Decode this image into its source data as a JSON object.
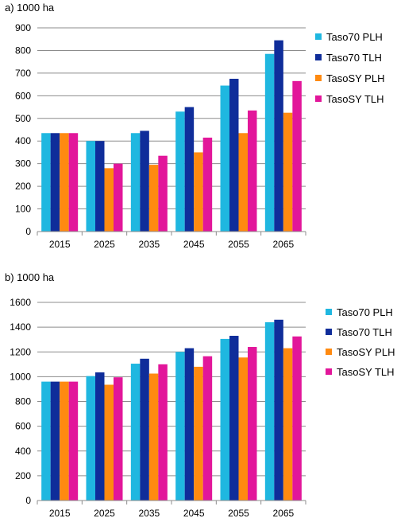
{
  "chart_data": [
    {
      "type": "bar",
      "title": "a)  1000 ha",
      "categories": [
        "2015",
        "2025",
        "2035",
        "2045",
        "2055",
        "2065"
      ],
      "series": [
        {
          "name": "Taso70 PLH",
          "color": "#1fb7e0",
          "values": [
            435,
            400,
            435,
            530,
            645,
            785
          ]
        },
        {
          "name": "Taso70 TLH",
          "color": "#0f2d9a",
          "values": [
            435,
            400,
            445,
            550,
            675,
            845
          ]
        },
        {
          "name": "TasoSY PLH",
          "color": "#ff8a10",
          "values": [
            435,
            280,
            295,
            350,
            435,
            525
          ]
        },
        {
          "name": "TasoSY TLH",
          "color": "#e2169a",
          "values": [
            435,
            300,
            335,
            415,
            535,
            665
          ]
        }
      ],
      "ylim": [
        0,
        900
      ],
      "yticks": [
        0,
        100,
        200,
        300,
        400,
        500,
        600,
        700,
        800,
        900
      ],
      "grid": true,
      "legend": "right"
    },
    {
      "type": "bar",
      "title": "b)  1000 ha",
      "categories": [
        "2015",
        "2025",
        "2035",
        "2045",
        "2055",
        "2065"
      ],
      "series": [
        {
          "name": "Taso70 PLH",
          "color": "#1fb7e0",
          "values": [
            960,
            1005,
            1105,
            1200,
            1305,
            1440
          ]
        },
        {
          "name": "Taso70 TLH",
          "color": "#0f2d9a",
          "values": [
            960,
            1035,
            1145,
            1230,
            1330,
            1460
          ]
        },
        {
          "name": "TasoSY PLH",
          "color": "#ff8a10",
          "values": [
            960,
            935,
            1025,
            1080,
            1155,
            1230
          ]
        },
        {
          "name": "TasoSY TLH",
          "color": "#e2169a",
          "values": [
            960,
            995,
            1100,
            1165,
            1240,
            1325
          ]
        }
      ],
      "ylim": [
        0,
        1600
      ],
      "yticks": [
        0,
        200,
        400,
        600,
        800,
        1000,
        1200,
        1400,
        1600
      ],
      "grid": true,
      "legend": "right"
    }
  ]
}
